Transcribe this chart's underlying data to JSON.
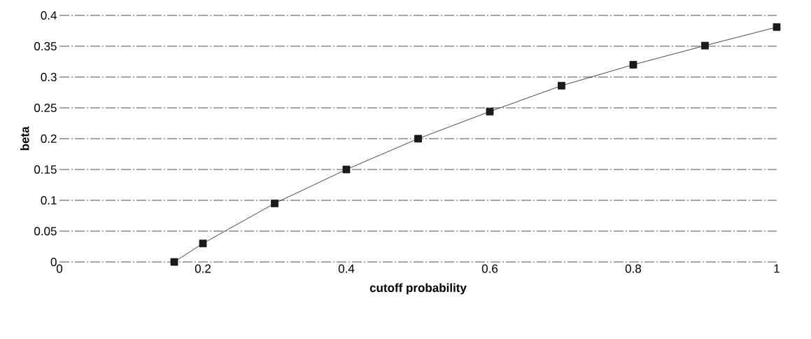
{
  "chart_data": {
    "type": "line",
    "xlabel": "cutoff probability",
    "ylabel": "beta",
    "xlim": [
      0,
      1
    ],
    "ylim": [
      0,
      0.4
    ],
    "xticks": [
      0,
      0.2,
      0.4,
      0.6,
      0.8,
      1
    ],
    "yticks": [
      0,
      0.05,
      0.1,
      0.15,
      0.2,
      0.25,
      0.3,
      0.35,
      0.4
    ],
    "grid": "y",
    "marker": "square",
    "line_style": "solid",
    "series": [
      {
        "color": "#1a1a1a",
        "x": [
          0.16,
          0.2,
          0.3,
          0.4,
          0.5,
          0.6,
          0.7,
          0.8,
          0.9,
          1.0
        ],
        "values": [
          0,
          0.03,
          0.095,
          0.15,
          0.2,
          0.244,
          0.286,
          0.32,
          0.351,
          0.381
        ]
      }
    ]
  }
}
